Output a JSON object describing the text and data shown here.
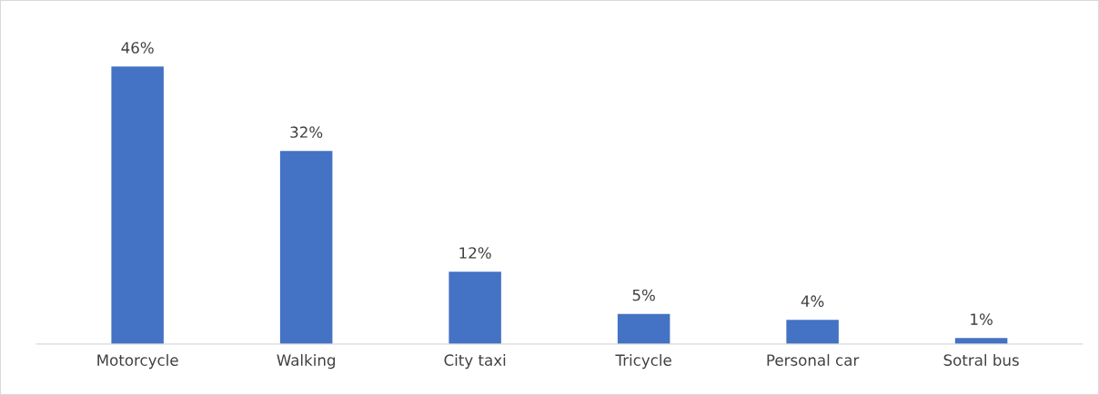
{
  "chart_data": {
    "type": "bar",
    "categories": [
      "Motorcycle",
      "Walking",
      "City taxi",
      "Tricycle",
      "Personal car",
      "Sotral bus"
    ],
    "values": [
      46,
      32,
      12,
      5,
      4,
      1
    ],
    "value_labels": [
      "46%",
      "32%",
      "12%",
      "5%",
      "4%",
      "1%"
    ],
    "color": "#4472c4",
    "tick_labels": "x",
    "grid": false,
    "legend": false
  }
}
